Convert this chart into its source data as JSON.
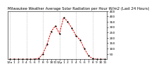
{
  "title": "Milwaukee Weather Average Solar Radiation per Hour W/m2 (Last 24 Hours)",
  "hours": [
    0,
    1,
    2,
    3,
    4,
    5,
    6,
    7,
    8,
    9,
    10,
    11,
    12,
    13,
    14,
    15,
    16,
    17,
    18,
    19,
    20,
    21,
    22,
    23
  ],
  "values": [
    0,
    0,
    0,
    0,
    0,
    0,
    1,
    8,
    50,
    140,
    260,
    310,
    240,
    390,
    350,
    290,
    220,
    180,
    100,
    35,
    5,
    0,
    0,
    0
  ],
  "x_labels": [
    "12a",
    "1",
    "2",
    "3",
    "4",
    "5",
    "6",
    "7",
    "8",
    "9",
    "10",
    "11",
    "12p",
    "1",
    "2",
    "3",
    "4",
    "5",
    "6",
    "7",
    "8",
    "9",
    "10",
    "11"
  ],
  "y_max": 450,
  "y_ticks": [
    50,
    100,
    150,
    200,
    250,
    300,
    350,
    400,
    450
  ],
  "line_color": "#dd0000",
  "marker_color": "#000000",
  "bg_color": "#ffffff",
  "grid_color": "#999999",
  "title_color": "#000000",
  "title_fontsize": 3.8,
  "tick_fontsize": 3.2
}
